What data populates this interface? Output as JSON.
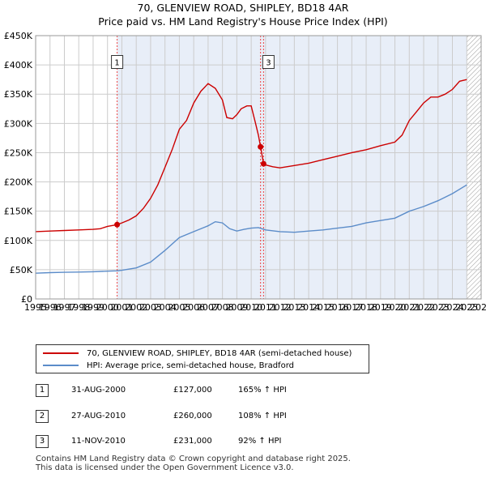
{
  "title": "70, GLENVIEW ROAD, SHIPLEY, BD18 4AR",
  "subtitle": "Price paid vs. HM Land Registry's House Price Index (HPI)",
  "colors": {
    "property": "#cc0000",
    "hpi": "#5b8cc9",
    "shade": "#e8eef8",
    "grid": "#cccccc",
    "marker_line": "#ee4444"
  },
  "legend": {
    "property_label": "70, GLENVIEW ROAD, SHIPLEY, BD18 4AR (semi-detached house)",
    "hpi_label": "HPI: Average price, semi-detached house, Bradford"
  },
  "sales": [
    {
      "num": "1",
      "date": "31-AUG-2000",
      "price": "£127,000",
      "hpi": "165% ↑ HPI"
    },
    {
      "num": "2",
      "date": "27-AUG-2010",
      "price": "£260,000",
      "hpi": "108% ↑ HPI"
    },
    {
      "num": "3",
      "date": "11-NOV-2010",
      "price": "£231,000",
      "hpi": "92% ↑ HPI"
    }
  ],
  "footer": {
    "line1": "Contains HM Land Registry data © Crown copyright and database right 2025.",
    "line2": "This data is licensed under the Open Government Licence v3.0."
  },
  "chart_data": {
    "type": "line",
    "title": "Price paid vs. HM Land Registry's House Price Index (HPI)",
    "xlim": [
      1995,
      2026
    ],
    "ylim": [
      0,
      450000
    ],
    "x_ticks": [
      "1995",
      "1996",
      "1997",
      "1998",
      "1999",
      "2000",
      "2001",
      "2002",
      "2003",
      "2004",
      "2005",
      "2006",
      "2007",
      "2008",
      "2009",
      "2010",
      "2011",
      "2012",
      "2013",
      "2014",
      "2015",
      "2016",
      "2017",
      "2018",
      "2019",
      "2020",
      "2021",
      "2022",
      "2023",
      "2024",
      "2025",
      "2026"
    ],
    "y_ticks": [
      {
        "value": 0,
        "label": "£0"
      },
      {
        "value": 50000,
        "label": "£50K"
      },
      {
        "value": 100000,
        "label": "£100K"
      },
      {
        "value": 150000,
        "label": "£150K"
      },
      {
        "value": 200000,
        "label": "£200K"
      },
      {
        "value": 250000,
        "label": "£250K"
      },
      {
        "value": 300000,
        "label": "£300K"
      },
      {
        "value": 350000,
        "label": "£350K"
      },
      {
        "value": 400000,
        "label": "£400K"
      },
      {
        "value": 450000,
        "label": "£450K"
      }
    ],
    "shaded_from": 2000.67,
    "hatched_from": 2025.0,
    "sale_markers": [
      {
        "label": "1",
        "x": 2000.67,
        "y": 127000
      },
      {
        "label": "2",
        "x": 2010.65,
        "y": 260000
      },
      {
        "label": "3",
        "x": 2010.86,
        "y": 231000
      }
    ],
    "series": [
      {
        "name": "70, GLENVIEW ROAD, SHIPLEY, BD18 4AR (semi-detached house)",
        "x": [
          1995,
          1996,
          1997,
          1998,
          1999,
          1999.5,
          2000,
          2000.67,
          2001,
          2001.5,
          2002,
          2002.5,
          2003,
          2003.5,
          2004,
          2004.5,
          2005,
          2005.5,
          2006,
          2006.5,
          2007,
          2007.5,
          2008,
          2008.3,
          2008.7,
          2009,
          2009.3,
          2009.7,
          2010,
          2010.3,
          2010.5,
          2010.65,
          2010.86,
          2011,
          2011.5,
          2012,
          2013,
          2014,
          2015,
          2016,
          2017,
          2018,
          2019,
          2020,
          2020.5,
          2021,
          2021.5,
          2022,
          2022.5,
          2023,
          2023.5,
          2024,
          2024.5,
          2025
        ],
        "values": [
          115000,
          116000,
          117000,
          118000,
          119000,
          120000,
          124000,
          127000,
          130000,
          135000,
          142000,
          155000,
          172000,
          195000,
          225000,
          255000,
          290000,
          305000,
          335000,
          355000,
          368000,
          360000,
          340000,
          310000,
          308000,
          315000,
          325000,
          330000,
          330000,
          300000,
          280000,
          260000,
          231000,
          229000,
          226000,
          224000,
          228000,
          232000,
          238000,
          244000,
          250000,
          255000,
          262000,
          268000,
          280000,
          305000,
          320000,
          335000,
          345000,
          345000,
          350000,
          358000,
          372000,
          375000
        ]
      },
      {
        "name": "HPI: Average price, semi-detached house, Bradford",
        "x": [
          1995,
          1996,
          1997,
          1998,
          1999,
          2000,
          2000.67,
          2001,
          2002,
          2003,
          2004,
          2005,
          2006,
          2007,
          2007.5,
          2008,
          2008.5,
          2009,
          2009.5,
          2010,
          2010.5,
          2011,
          2012,
          2013,
          2014,
          2015,
          2016,
          2017,
          2018,
          2019,
          2020,
          2021,
          2022,
          2023,
          2024,
          2025
        ],
        "values": [
          44000,
          45000,
          45500,
          46000,
          46500,
          47500,
          48000,
          49000,
          53000,
          63000,
          83000,
          105000,
          115000,
          125000,
          132000,
          130000,
          120000,
          116000,
          119000,
          121000,
          122000,
          118000,
          115000,
          114000,
          116000,
          118000,
          121000,
          124000,
          130000,
          134000,
          138000,
          150000,
          158000,
          168000,
          180000,
          195000
        ]
      }
    ]
  }
}
